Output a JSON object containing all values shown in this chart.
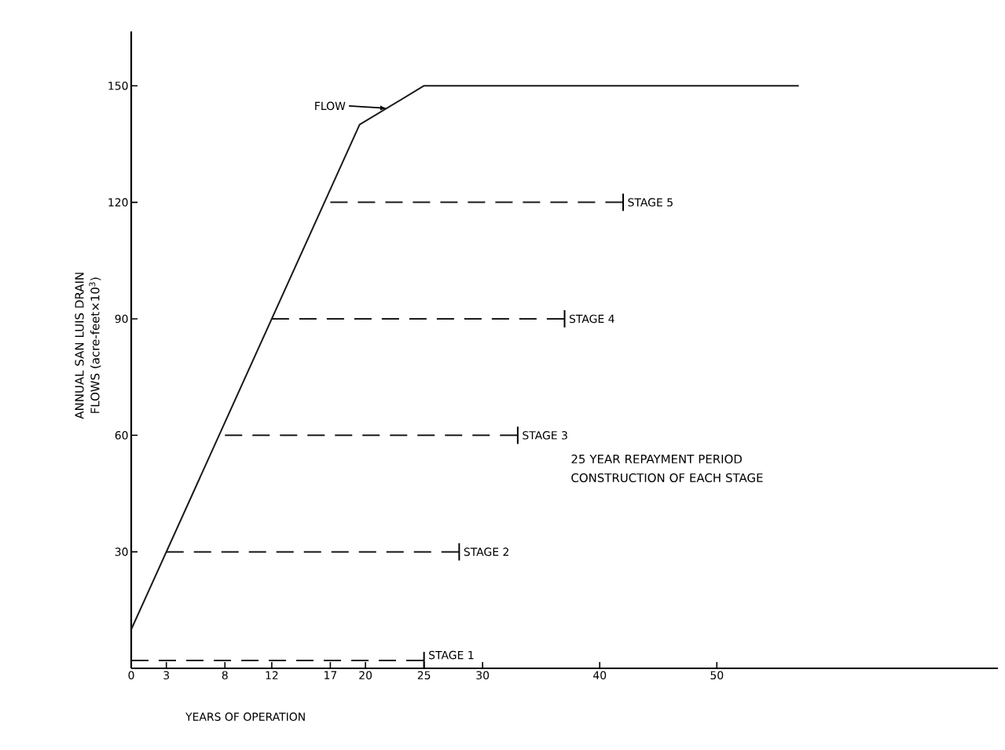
{
  "chart_data": {
    "type": "line",
    "xlabel": "YEARS OF OPERATION",
    "ylabel": "ANNUAL SAN LUIS DRAIN FLOWS (acre-feet×10$^{3}$)",
    "xlim": [
      0,
      74
    ],
    "ylim": [
      0,
      164
    ],
    "xticks": [
      0,
      3,
      8,
      12,
      17,
      20,
      25,
      30,
      40,
      50
    ],
    "yticks": [
      30,
      60,
      90,
      120,
      150
    ],
    "grid": false,
    "series": [
      {
        "name": "FLOW",
        "color": "#1a1a1a",
        "line_style": "solid",
        "x": [
          0,
          19.5,
          25,
          57
        ],
        "values": [
          10,
          140,
          150,
          150
        ]
      },
      {
        "name": "STAGE 1",
        "color": "#1a1a1a",
        "line_style": "dashed",
        "x": [
          0,
          25
        ],
        "values": [
          2,
          2
        ]
      },
      {
        "name": "STAGE 2",
        "color": "#1a1a1a",
        "line_style": "dashed",
        "x": [
          3,
          28
        ],
        "values": [
          30,
          30
        ]
      },
      {
        "name": "STAGE 3",
        "color": "#1a1a1a",
        "line_style": "dashed",
        "x": [
          8,
          33
        ],
        "values": [
          60,
          60
        ]
      },
      {
        "name": "STAGE 4",
        "color": "#1a1a1a",
        "line_style": "dashed",
        "x": [
          12,
          37
        ],
        "values": [
          90,
          90
        ]
      },
      {
        "name": "STAGE 5",
        "color": "#1a1a1a",
        "line_style": "dashed",
        "x": [
          17,
          42
        ],
        "values": [
          120,
          120
        ]
      }
    ],
    "annotations": [
      "25 YEAR REPAYMENT PERIOD CONSTRUCTION OF EACH STAGE"
    ]
  }
}
